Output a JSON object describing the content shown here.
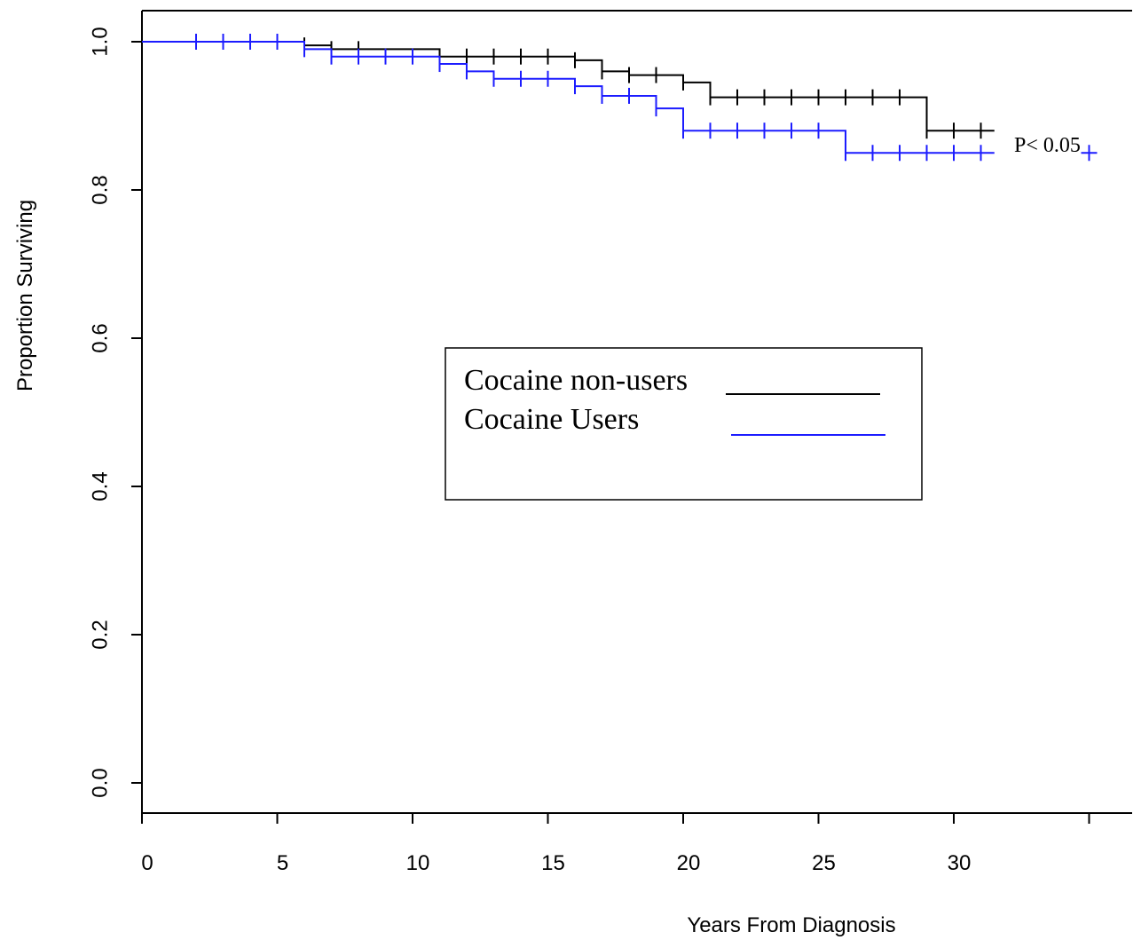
{
  "chart_data": {
    "type": "line",
    "xlabel": "Years From Diagnosis",
    "ylabel": "Proportion Surviving",
    "xlim": [
      0,
      35
    ],
    "ylim": [
      0.0,
      1.0
    ],
    "x_ticks": [
      0,
      5,
      10,
      15,
      20,
      25,
      30
    ],
    "x_tick_labels": [
      "0",
      "5",
      "10",
      "15",
      "20",
      "25",
      "30"
    ],
    "y_ticks": [
      0.0,
      0.2,
      0.4,
      0.6,
      0.8,
      1.0
    ],
    "y_tick_labels": [
      "0.0",
      "0.2",
      "0.4",
      "0.6",
      "0.8",
      "1.0"
    ],
    "annotation": "P< 0.05",
    "legend": {
      "placement": "center",
      "entries": [
        {
          "label": "Cocaine non-users",
          "color": "#000000"
        },
        {
          "label": "Cocaine Users",
          "color": "#1c1cff"
        }
      ]
    },
    "series": [
      {
        "name": "Cocaine non-users",
        "color": "#000000",
        "steps": [
          [
            1,
            1.0
          ],
          [
            6,
            0.995
          ],
          [
            7,
            0.99
          ],
          [
            11,
            0.98
          ],
          [
            16,
            0.975
          ],
          [
            17,
            0.96
          ],
          [
            18,
            0.955
          ],
          [
            20,
            0.945
          ],
          [
            21,
            0.925
          ],
          [
            29,
            0.88
          ],
          [
            31.5,
            0.88
          ]
        ],
        "censor_x": [
          2,
          3,
          4,
          5,
          6,
          7,
          8,
          12,
          13,
          14,
          15,
          16,
          17,
          18,
          19,
          20,
          21,
          22,
          23,
          24,
          25,
          26,
          27,
          28,
          29,
          30,
          31
        ]
      },
      {
        "name": "Cocaine Users",
        "color": "#1c1cff",
        "steps": [
          [
            0,
            1.0
          ],
          [
            6,
            0.99
          ],
          [
            7,
            0.98
          ],
          [
            11,
            0.97
          ],
          [
            12,
            0.96
          ],
          [
            13,
            0.95
          ],
          [
            16,
            0.94
          ],
          [
            17,
            0.927
          ],
          [
            19,
            0.91
          ],
          [
            20,
            0.88
          ],
          [
            26,
            0.85
          ],
          [
            31.5,
            0.85
          ]
        ],
        "censor_x": [
          2,
          3,
          4,
          5,
          6,
          7,
          8,
          9,
          10,
          11,
          12,
          13,
          14,
          15,
          16,
          17,
          18,
          19,
          20,
          21,
          22,
          23,
          24,
          25,
          26,
          27,
          28,
          29,
          30,
          31,
          35
        ]
      }
    ]
  }
}
